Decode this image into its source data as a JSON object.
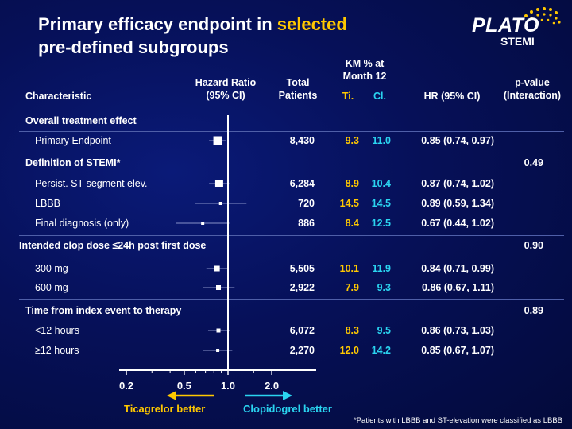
{
  "title": {
    "line1_pre": "Primary efficacy endpoint in ",
    "line1_highlight": "selected",
    "line2": "pre-defined subgroups"
  },
  "logo": {
    "name": "PLATO",
    "sub": "STEMI"
  },
  "headers": {
    "characteristic": "Characteristic",
    "hazard_ratio_1": "Hazard Ratio",
    "hazard_ratio_2": "(95% CI)",
    "total_1": "Total",
    "total_2": "Patients",
    "km_1": "KM % at",
    "km_2": "Month 12",
    "ti": "Ti.",
    "cl": "Cl.",
    "hr": "HR (95% CI)",
    "pvalue_1": "p-value",
    "pvalue_2": "(Interaction)"
  },
  "colors": {
    "ticagrelor": "#ffc800",
    "clopidogrel": "#2ad4f0",
    "background": "#061058"
  },
  "chart_data": {
    "type": "forest",
    "x_scale": "log",
    "xlim": [
      0.2,
      2.5
    ],
    "ticks": [
      "0.2",
      "0.5",
      "1.0",
      "2.0"
    ],
    "reference_line": 1.0,
    "left_arrow_label": "Ticagrelor better",
    "right_arrow_label": "Clopidogrel better",
    "rows": [
      {
        "kind": "section",
        "label": "Overall treatment effect",
        "p": ""
      },
      {
        "kind": "item",
        "label": "Primary Endpoint",
        "n": "8,430",
        "ti": "9.3",
        "cl": "11.0",
        "hr": 0.85,
        "lo": 0.74,
        "hi": 0.97,
        "hr_text": "0.85 (0.74, 0.97)",
        "size": 11
      },
      {
        "kind": "section",
        "label": "Definition of STEMI*",
        "p": "0.49"
      },
      {
        "kind": "item",
        "label": "Persist. ST-segment elev.",
        "n": "6,284",
        "ti": "8.9",
        "cl": "10.4",
        "hr": 0.87,
        "lo": 0.74,
        "hi": 1.02,
        "hr_text": "0.87 (0.74, 1.02)",
        "size": 10
      },
      {
        "kind": "item",
        "label": "LBBB",
        "n": "720",
        "ti": "14.5",
        "cl": "14.5",
        "hr": 0.89,
        "lo": 0.59,
        "hi": 1.34,
        "hr_text": "0.89 (0.59, 1.34)",
        "size": 4
      },
      {
        "kind": "item",
        "label": "Final diagnosis (only)",
        "n": "886",
        "ti": "8.4",
        "cl": "12.5",
        "hr": 0.67,
        "lo": 0.44,
        "hi": 1.02,
        "hr_text": "0.67 (0.44, 1.02)",
        "size": 4
      },
      {
        "kind": "section",
        "label": "Intended clop dose ≤24h post first dose",
        "p": "0.90"
      },
      {
        "kind": "item",
        "label": "300 mg",
        "n": "5,505",
        "ti": "10.1",
        "cl": "11.9",
        "hr": 0.84,
        "lo": 0.71,
        "hi": 0.99,
        "hr_text": "0.84 (0.71, 0.99)",
        "size": 7
      },
      {
        "kind": "item",
        "label": "600 mg",
        "n": "2,922",
        "ti": "7.9",
        "cl": "9.3",
        "hr": 0.86,
        "lo": 0.67,
        "hi": 1.11,
        "hr_text": "0.86 (0.67, 1.11)",
        "size": 6
      },
      {
        "kind": "section",
        "label": "Time from index event to therapy",
        "p": "0.89"
      },
      {
        "kind": "item",
        "label": "<12 hours",
        "n": "6,072",
        "ti": "8.3",
        "cl": "9.5",
        "hr": 0.86,
        "lo": 0.73,
        "hi": 1.03,
        "hr_text": "0.86 (0.73, 1.03)",
        "size": 5
      },
      {
        "kind": "item",
        "label": "≥12 hours",
        "n": "2,270",
        "ti": "12.0",
        "cl": "14.2",
        "hr": 0.85,
        "lo": 0.67,
        "hi": 1.07,
        "hr_text": "0.85 (0.67, 1.07)",
        "size": 4
      }
    ]
  },
  "footnote": "*Patients with LBBB and ST-elevation were classified as LBBB"
}
